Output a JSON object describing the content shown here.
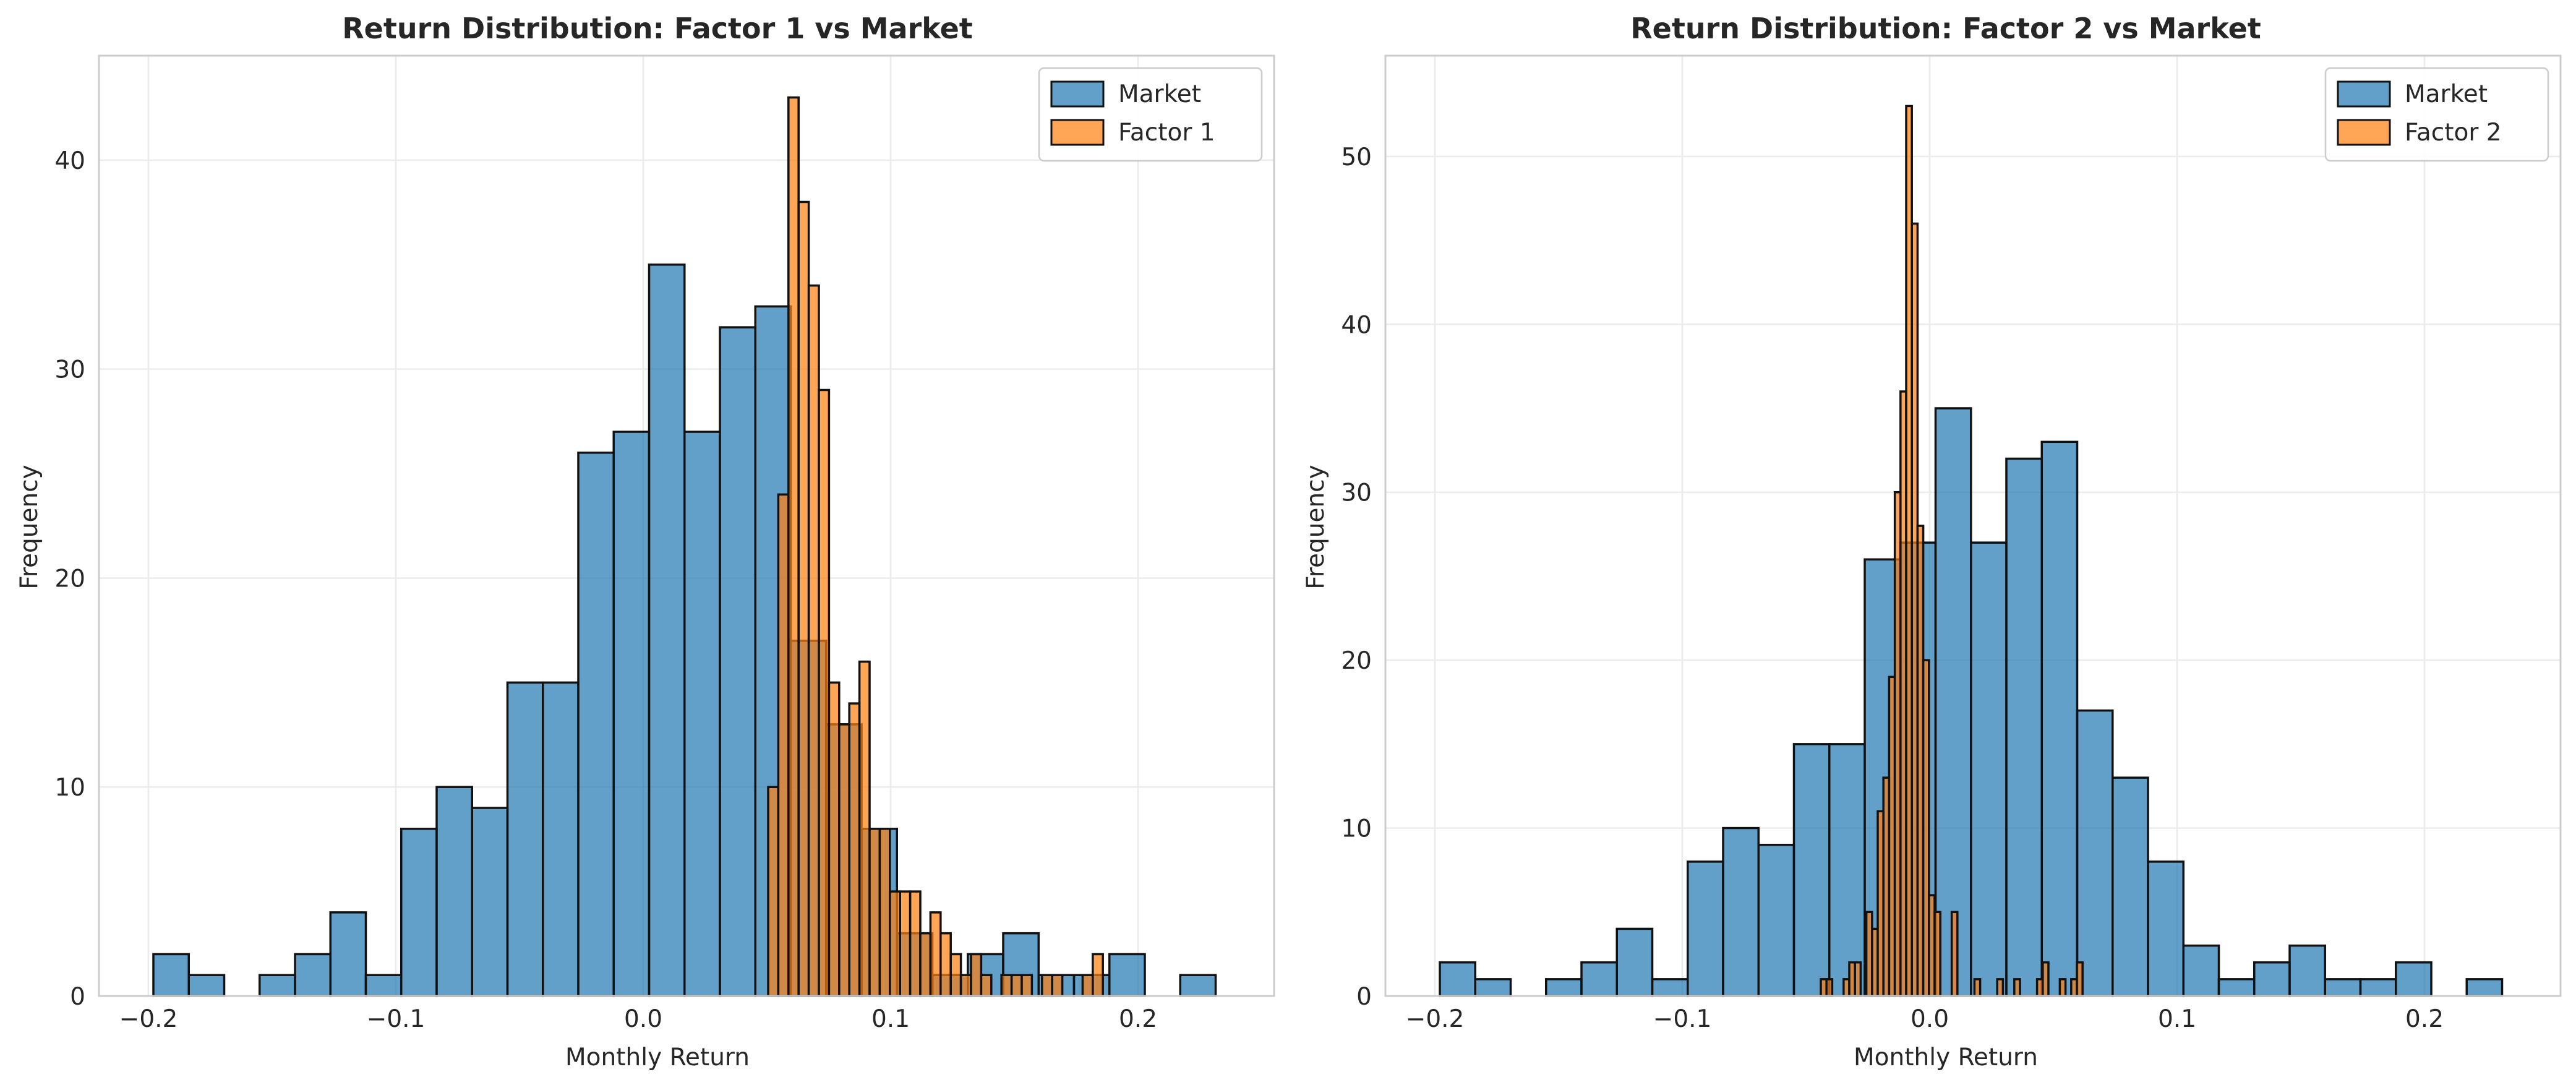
{
  "chart_data": [
    {
      "type": "bar",
      "title": "Return Distribution: Factor 1 vs Market",
      "xlabel": "Monthly Return",
      "ylabel": "Frequency",
      "xlim": [
        -0.22,
        0.255
      ],
      "ylim": [
        0,
        45
      ],
      "xticks": [
        -0.2,
        -0.1,
        0.0,
        0.1,
        0.2
      ],
      "xtick_labels": [
        "−0.2",
        "−0.1",
        "0.0",
        "0.1",
        "0.2"
      ],
      "yticks": [
        0,
        10,
        20,
        30,
        40
      ],
      "ytick_labels": [
        "0",
        "10",
        "20",
        "30",
        "40"
      ],
      "grid": true,
      "legend_position": "top-right",
      "series": [
        {
          "name": "Market",
          "color": "#1f77b4",
          "bin_edges": [
            -0.198,
            -0.183687,
            -0.169375,
            -0.155062,
            -0.14075,
            -0.126437,
            -0.112124,
            -0.097812,
            -0.083499,
            -0.069186,
            -0.054874,
            -0.040561,
            -0.026249,
            -0.011936,
            0.002377,
            0.016689,
            0.031002,
            0.045315,
            0.059627,
            0.07394,
            0.088252,
            0.102565,
            0.116878,
            0.13119,
            0.145503,
            0.159816,
            0.174128,
            0.188441,
            0.202753,
            0.217066,
            0.231379
          ],
          "counts": [
            2,
            1,
            0,
            1,
            2,
            4,
            1,
            8,
            10,
            9,
            15,
            15,
            26,
            27,
            35,
            27,
            32,
            33,
            17,
            13,
            8,
            3,
            1,
            2,
            3,
            1,
            1,
            2,
            0,
            1
          ]
        },
        {
          "name": "Factor 1",
          "color": "#ff7f0e",
          "bin_edges": [
            0.0505,
            0.0546,
            0.0587,
            0.0628,
            0.0669,
            0.071,
            0.0751,
            0.0792,
            0.0833,
            0.0874,
            0.0915,
            0.0956,
            0.0997,
            0.1038,
            0.1079,
            0.112,
            0.1161,
            0.1202,
            0.1243,
            0.1284,
            0.1325,
            0.1366,
            0.1407,
            0.1448,
            0.1489,
            0.153,
            0.1571,
            0.1612,
            0.1653,
            0.1694,
            0.1735,
            0.1776,
            0.1817,
            0.1858,
            0.1899,
            0.194
          ],
          "counts": [
            10,
            24,
            43,
            38,
            34,
            29,
            15,
            13,
            14,
            16,
            8,
            8,
            5,
            5,
            5,
            3,
            4,
            3,
            2,
            1,
            2,
            1,
            0,
            1,
            1,
            1,
            0,
            1,
            1,
            0,
            0,
            1,
            2,
            0,
            0
          ]
        }
      ]
    },
    {
      "type": "bar",
      "title": "Return Distribution: Factor 2 vs Market",
      "xlabel": "Monthly Return",
      "ylabel": "Frequency",
      "xlim": [
        -0.22,
        0.255
      ],
      "ylim": [
        0,
        56
      ],
      "xticks": [
        -0.2,
        -0.1,
        0.0,
        0.1,
        0.2
      ],
      "xtick_labels": [
        "−0.2",
        "−0.1",
        "0.0",
        "0.1",
        "0.2"
      ],
      "yticks": [
        0,
        10,
        20,
        30,
        40,
        50
      ],
      "ytick_labels": [
        "0",
        "10",
        "20",
        "30",
        "40",
        "50"
      ],
      "grid": true,
      "legend_position": "top-right",
      "series": [
        {
          "name": "Market",
          "color": "#1f77b4",
          "bin_edges": [
            -0.198,
            -0.183687,
            -0.169375,
            -0.155062,
            -0.14075,
            -0.126437,
            -0.112124,
            -0.097812,
            -0.083499,
            -0.069186,
            -0.054874,
            -0.040561,
            -0.026249,
            -0.011936,
            0.002377,
            0.016689,
            0.031002,
            0.045315,
            0.059627,
            0.07394,
            0.088252,
            0.102565,
            0.116878,
            0.13119,
            0.145503,
            0.159816,
            0.174128,
            0.188441,
            0.202753,
            0.217066,
            0.231379
          ],
          "counts": [
            2,
            1,
            0,
            1,
            2,
            4,
            1,
            8,
            10,
            9,
            15,
            15,
            26,
            27,
            35,
            27,
            32,
            33,
            17,
            13,
            8,
            3,
            1,
            2,
            3,
            1,
            1,
            2,
            0,
            1
          ]
        },
        {
          "name": "Factor 2",
          "color": "#ff7f0e",
          "bin_edges": [
            -0.044,
            -0.0417,
            -0.0394,
            -0.0371,
            -0.0348,
            -0.0325,
            -0.0302,
            -0.0279,
            -0.0256,
            -0.0233,
            -0.021,
            -0.0187,
            -0.0164,
            -0.0141,
            -0.0118,
            -0.0095,
            -0.0072,
            -0.0049,
            -0.0026,
            -0.0003,
            0.002,
            0.0043,
            0.0066,
            0.0089,
            0.0112,
            0.0135,
            0.0158,
            0.0181,
            0.0204,
            0.0227,
            0.025,
            0.0273,
            0.0296,
            0.0319,
            0.0342,
            0.0365,
            0.0388,
            0.0411,
            0.0434,
            0.0457,
            0.048,
            0.0503,
            0.0526,
            0.0549,
            0.0572,
            0.0595,
            0.0618,
            0.0641,
            0.0664,
            0.0687,
            0.071,
            0.0733,
            0.0756,
            0.0779,
            0.0802,
            0.0825,
            0.0848
          ],
          "counts": [
            1,
            1,
            0,
            0,
            1,
            2,
            2,
            0,
            5,
            4,
            11,
            13,
            19,
            30,
            36,
            53,
            46,
            28,
            20,
            6,
            5,
            0,
            0,
            5,
            0,
            0,
            0,
            1,
            0,
            0,
            0,
            1,
            0,
            0,
            1,
            0,
            0,
            0,
            1,
            2,
            0,
            0,
            1,
            0,
            1,
            2,
            0,
            0,
            0,
            0,
            0,
            0,
            0,
            0,
            0,
            0
          ]
        }
      ]
    }
  ]
}
